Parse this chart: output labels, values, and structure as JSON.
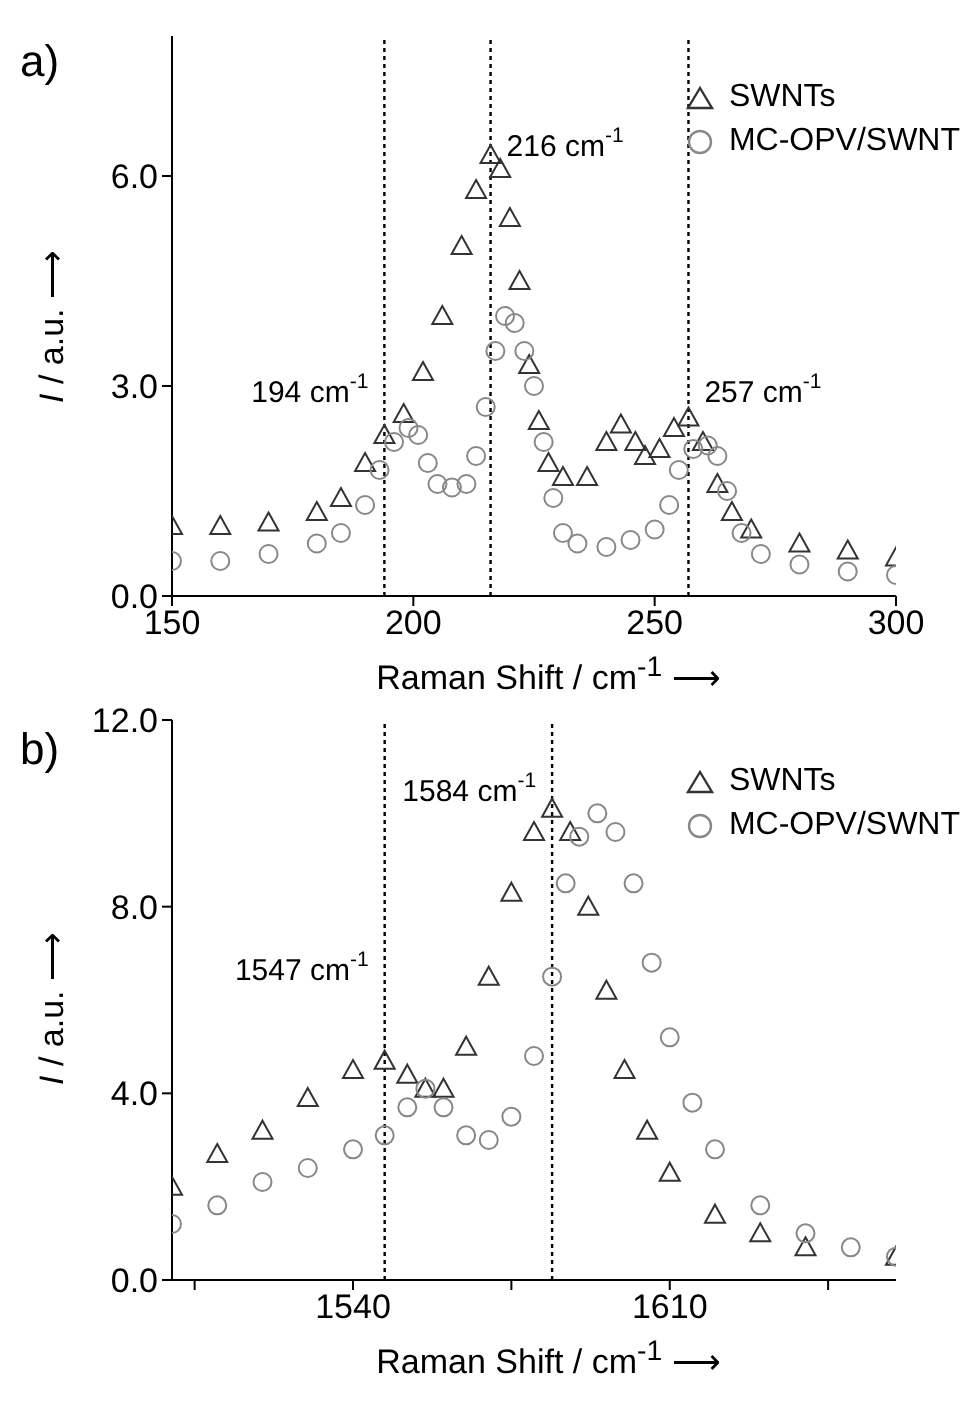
{
  "chart_data": [
    {
      "type": "scatter",
      "title": "a)",
      "xlabel": "Raman Shift / cm$^{-1}$ ⟶",
      "ylabel": "I / a.u. ⟶",
      "xlim": [
        150,
        300
      ],
      "xticks": [
        150,
        200,
        250,
        300
      ],
      "ylim": [
        0,
        8
      ],
      "yticks": [
        {
          "value": 0,
          "label": "0.0"
        },
        {
          "value": 3,
          "label": "3.0"
        },
        {
          "value": 6,
          "label": "6.0"
        }
      ],
      "legend": "top right",
      "grid": false,
      "ref_lines": [
        {
          "axis": "x",
          "value": 194,
          "line_style": "dotted",
          "color": "#000000",
          "label": "194 cm$^{-1}$"
        },
        {
          "axis": "x",
          "value": 216,
          "line_style": "dotted",
          "color": "#000000",
          "label": "216 cm$^{-1}$"
        },
        {
          "axis": "x",
          "value": 257,
          "line_style": "dotted",
          "color": "#000000",
          "label": "257 cm$^{-1}$"
        }
      ],
      "series": [
        {
          "name": "SWNTs",
          "color": "#333333",
          "marker": "triangle",
          "x": [
            150,
            160,
            170,
            180,
            185,
            190,
            194,
            198,
            202,
            206,
            210,
            213,
            216,
            218,
            220,
            222,
            224,
            226,
            228,
            231,
            236,
            240,
            243,
            246,
            248,
            251,
            254,
            257,
            260,
            263,
            266,
            270,
            280,
            290,
            300
          ],
          "values": [
            1.0,
            1.0,
            1.05,
            1.2,
            1.4,
            1.9,
            2.3,
            2.6,
            3.2,
            4.0,
            5.0,
            5.8,
            6.3,
            6.1,
            5.4,
            4.5,
            3.3,
            2.5,
            1.9,
            1.7,
            1.7,
            2.2,
            2.45,
            2.2,
            2.0,
            2.1,
            2.4,
            2.55,
            2.2,
            1.6,
            1.2,
            0.95,
            0.75,
            0.65,
            0.55
          ]
        },
        {
          "name": "MC-OPV/SWNT",
          "color": "#888888",
          "marker": "circle",
          "x": [
            150,
            160,
            170,
            180,
            185,
            190,
            193,
            196,
            199,
            201,
            203,
            205,
            208,
            211,
            213,
            215,
            217,
            219,
            221,
            223,
            225,
            227,
            229,
            231,
            234,
            240,
            245,
            250,
            253,
            255,
            258,
            261,
            263,
            265,
            268,
            272,
            280,
            290,
            300
          ],
          "values": [
            0.5,
            0.5,
            0.6,
            0.75,
            0.9,
            1.3,
            1.8,
            2.2,
            2.4,
            2.3,
            1.9,
            1.6,
            1.55,
            1.6,
            2.0,
            2.7,
            3.5,
            4.0,
            3.9,
            3.5,
            3.0,
            2.2,
            1.4,
            0.9,
            0.75,
            0.7,
            0.8,
            0.95,
            1.3,
            1.8,
            2.1,
            2.15,
            2.0,
            1.5,
            0.9,
            0.6,
            0.45,
            0.35,
            0.3
          ]
        }
      ]
    },
    {
      "type": "scatter",
      "title": "b)",
      "xlabel": "Raman Shift / cm$^{-1}$ ⟶",
      "ylabel": "I / a.u. ⟶",
      "xlim": [
        1500,
        1660
      ],
      "xticks": [
        {
          "value": 1505,
          "label": null
        },
        1540,
        {
          "value": 1575,
          "label": null
        },
        1610,
        {
          "value": 1645,
          "label": null
        }
      ],
      "ylim": [
        0,
        12
      ],
      "yticks": [
        {
          "value": 0,
          "label": "0.0"
        },
        {
          "value": 4,
          "label": "4.0"
        },
        {
          "value": 8,
          "label": "8.0"
        },
        {
          "value": 12,
          "label": "12.0"
        }
      ],
      "legend": "top right",
      "grid": false,
      "ref_lines": [
        {
          "axis": "x",
          "value": 1547,
          "line_style": "dotted",
          "color": "#000000",
          "label": "1547 cm$^{-1}$"
        },
        {
          "axis": "x",
          "value": 1584,
          "line_style": "dotted",
          "color": "#000000",
          "label": "1584 cm$^{-1}$"
        }
      ],
      "series": [
        {
          "name": "SWNTs",
          "color": "#333333",
          "marker": "triangle",
          "x": [
            1500,
            1510,
            1520,
            1530,
            1540,
            1547,
            1552,
            1556,
            1560,
            1565,
            1570,
            1575,
            1580,
            1584,
            1588,
            1592,
            1596,
            1600,
            1605,
            1610,
            1620,
            1630,
            1640,
            1660
          ],
          "values": [
            2.0,
            2.7,
            3.2,
            3.9,
            4.5,
            4.7,
            4.4,
            4.1,
            4.1,
            5.0,
            6.5,
            8.3,
            9.6,
            10.1,
            9.6,
            8.0,
            6.2,
            4.5,
            3.2,
            2.3,
            1.4,
            1.0,
            0.7,
            0.5
          ]
        },
        {
          "name": "MC-OPV/SWNT",
          "color": "#888888",
          "marker": "circle",
          "x": [
            1500,
            1510,
            1520,
            1530,
            1540,
            1547,
            1552,
            1556,
            1560,
            1565,
            1570,
            1575,
            1580,
            1584,
            1587,
            1590,
            1594,
            1598,
            1602,
            1606,
            1610,
            1615,
            1620,
            1630,
            1640,
            1650,
            1660
          ],
          "values": [
            1.2,
            1.6,
            2.1,
            2.4,
            2.8,
            3.1,
            3.7,
            4.1,
            3.7,
            3.1,
            3.0,
            3.5,
            4.8,
            6.5,
            8.5,
            9.5,
            10.0,
            9.6,
            8.5,
            6.8,
            5.2,
            3.8,
            2.8,
            1.6,
            1.0,
            0.7,
            0.5
          ]
        }
      ]
    }
  ]
}
